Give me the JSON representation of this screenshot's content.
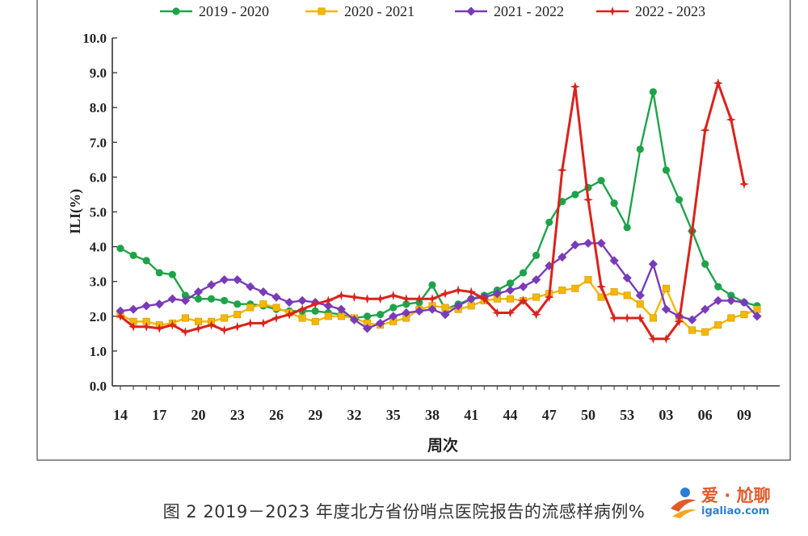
{
  "chart_data": {
    "type": "line",
    "xlabel": "周次",
    "ylabel": "ILI(%)",
    "ylim": [
      0,
      10
    ],
    "yticks": [
      "0.0",
      "1.0",
      "2.0",
      "3.0",
      "4.0",
      "5.0",
      "6.0",
      "7.0",
      "8.0",
      "9.0",
      "10.0"
    ],
    "xtick_labels": [
      "14",
      "17",
      "20",
      "23",
      "26",
      "29",
      "32",
      "35",
      "38",
      "41",
      "44",
      "47",
      "50",
      "53",
      "03",
      "06",
      "09"
    ],
    "grid": false,
    "legend_position": "top",
    "series": [
      {
        "name": "2019 - 2020",
        "color": "#1fa34a",
        "marker": "circle",
        "values": [
          3.95,
          3.75,
          3.6,
          3.25,
          3.2,
          2.6,
          2.5,
          2.5,
          2.45,
          2.35,
          2.35,
          2.3,
          2.2,
          2.15,
          2.15,
          2.15,
          2.1,
          2.05,
          1.95,
          2.0,
          2.05,
          2.25,
          2.35,
          2.4,
          2.9,
          2.2,
          2.35,
          2.5,
          2.6,
          2.75,
          2.95,
          3.25,
          3.75,
          4.7,
          5.3,
          5.5,
          5.7,
          5.9,
          5.25,
          4.55,
          6.8,
          8.45,
          6.2,
          5.35,
          4.45,
          3.5,
          2.85,
          2.6,
          2.4,
          2.3
        ]
      },
      {
        "name": "2020 - 2021",
        "color": "#f5b800",
        "marker": "square",
        "values": [
          2.05,
          1.85,
          1.85,
          1.75,
          1.8,
          1.95,
          1.85,
          1.85,
          1.95,
          2.05,
          2.25,
          2.35,
          2.25,
          2.1,
          1.95,
          1.85,
          2.0,
          2.0,
          1.95,
          1.8,
          1.75,
          1.85,
          1.95,
          2.2,
          2.3,
          2.25,
          2.2,
          2.3,
          2.45,
          2.5,
          2.5,
          2.45,
          2.55,
          2.65,
          2.75,
          2.8,
          3.05,
          2.55,
          2.7,
          2.6,
          2.35,
          1.95,
          2.8,
          1.95,
          1.6,
          1.55,
          1.75,
          1.95,
          2.05,
          2.2
        ]
      },
      {
        "name": "2021 - 2022",
        "color": "#7a3bb8",
        "marker": "diamond",
        "values": [
          2.15,
          2.2,
          2.3,
          2.35,
          2.5,
          2.45,
          2.7,
          2.9,
          3.05,
          3.05,
          2.85,
          2.7,
          2.55,
          2.4,
          2.45,
          2.4,
          2.3,
          2.2,
          1.9,
          1.65,
          1.8,
          2.0,
          2.1,
          2.15,
          2.2,
          2.05,
          2.3,
          2.5,
          2.55,
          2.65,
          2.75,
          2.85,
          3.05,
          3.45,
          3.7,
          4.05,
          4.1,
          4.1,
          3.6,
          3.1,
          2.6,
          3.5,
          2.2,
          2.0,
          1.9,
          2.2,
          2.45,
          2.45,
          2.4,
          2.0
        ]
      },
      {
        "name": "2022 - 2023",
        "color": "#d9231b",
        "marker": "star",
        "values": [
          2.0,
          1.7,
          1.7,
          1.65,
          1.75,
          1.55,
          1.65,
          1.75,
          1.6,
          1.7,
          1.8,
          1.8,
          1.95,
          2.05,
          2.2,
          2.35,
          2.45,
          2.6,
          2.55,
          2.5,
          2.5,
          2.6,
          2.5,
          2.5,
          2.5,
          2.65,
          2.75,
          2.7,
          2.5,
          2.1,
          2.1,
          2.45,
          2.05,
          2.55,
          6.2,
          8.6,
          5.35,
          2.85,
          1.95,
          1.95,
          1.95,
          1.35,
          1.35,
          1.85,
          4.45,
          7.35,
          8.7,
          7.65,
          5.8
        ]
      }
    ]
  },
  "caption": "图 2   2019－2023 年度北方省份哨点医院报告的流感样病例%",
  "watermark": {
    "brand": "爱 · 尬聊",
    "url": "igaliao.com"
  }
}
